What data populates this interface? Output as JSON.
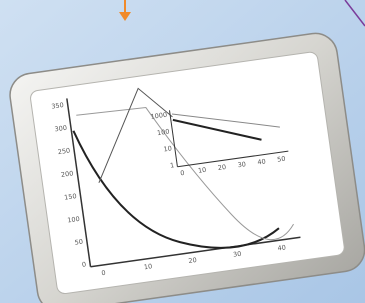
{
  "main_chart": {
    "yticks": [
      "350",
      "300",
      "250",
      "200",
      "150",
      "100",
      "50",
      "0"
    ],
    "xticks": [
      "0",
      "10",
      "20",
      "30",
      "40"
    ]
  },
  "inset_chart": {
    "yticks": [
      "1000",
      "100",
      "10",
      "1"
    ],
    "xticks": [
      "0",
      "10",
      "20",
      "30",
      "40",
      "50"
    ]
  }
}
